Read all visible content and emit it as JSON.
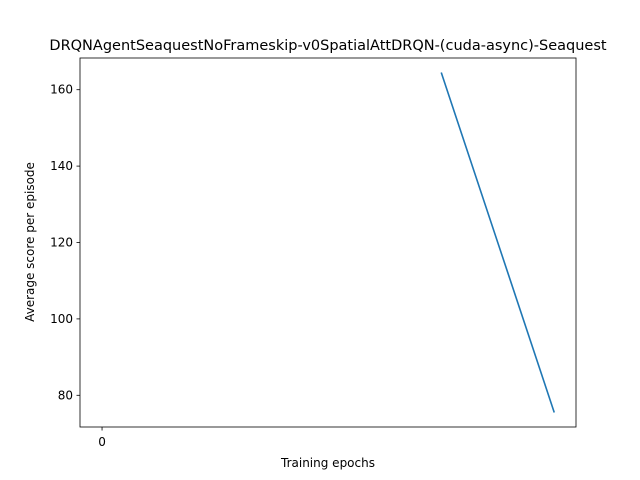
{
  "chart_data": {
    "type": "line",
    "title": "DRQNAgentSeaquestNoFrameskip-v0SpatialAttDRQN-(cuda-async)-Seaquest",
    "xlabel": "Training epochs",
    "ylabel": "Average score per episode",
    "xlim": [
      -0.2,
      4.3
    ],
    "ylim": [
      71.7,
      168.3
    ],
    "x_ticks": [
      0
    ],
    "x_tick_labels": [
      "0"
    ],
    "y_ticks": [
      80,
      100,
      120,
      140,
      160
    ],
    "y_tick_labels": [
      "80",
      "100",
      "120",
      "140",
      "160"
    ],
    "grid": false,
    "legend": "none",
    "series": [
      {
        "x": [
          3.08,
          4.1
        ],
        "values": [
          164.3,
          75.7
        ],
        "color": "#1f77b4"
      }
    ]
  }
}
